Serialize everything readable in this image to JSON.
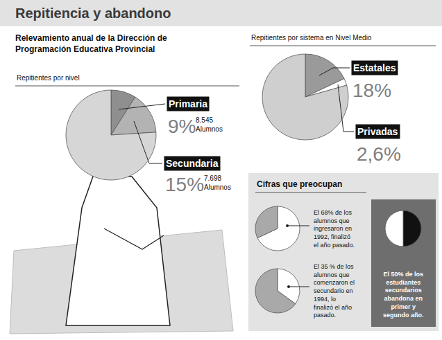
{
  "header": {
    "title": "Repitiencia y abandono",
    "subtitle": "Relevamiento anual de la Dirección de Programación Educativa Provincial"
  },
  "panel": {
    "title": "Cifras que preocupan"
  },
  "chart_data": [
    {
      "type": "pie",
      "title": "Repitientes por nivel",
      "categories": [
        "Primaria",
        "Secundaria",
        null
      ],
      "values": [
        9,
        15,
        76
      ],
      "value_labels": [
        "9%",
        "15%",
        null
      ],
      "students": [
        {
          "value": 8545,
          "label": "8.545"
        },
        {
          "value": 7698,
          "label": "7.698"
        },
        null
      ],
      "students_unit": "Alumnos",
      "colors": [
        "#8f8f8f",
        "#b3b3b3",
        "#d6d6d6"
      ]
    },
    {
      "type": "pie",
      "title": "Repitientes por sistema en Nivel Medio",
      "categories": [
        "Estatales",
        "Privadas",
        null
      ],
      "values": [
        18,
        2.6,
        79.4
      ],
      "value_labels": [
        "18%",
        "2,6%",
        null
      ],
      "colors": [
        "#9a9a9a",
        "#ffffff",
        "#cfcfcf"
      ]
    },
    {
      "type": "pie",
      "annotation": "El 68% de los alumnos que ingresaron en 1992, finalizó el año pasado.",
      "values": [
        68,
        32
      ],
      "colors": [
        "#ffffff",
        "#a9a9a9"
      ]
    },
    {
      "type": "pie",
      "annotation": "El 35 % de los alumnos que comenzaron el secundario en 1994, lo finalizó el año pasado.",
      "values": [
        35,
        65
      ],
      "colors": [
        "#ffffff",
        "#a9a9a9"
      ]
    },
    {
      "type": "pie",
      "annotation": "El 50% de los estudiantes secundarios abandona en primer y segundo año.",
      "values": [
        50,
        50
      ],
      "colors": [
        "#111111",
        "#ffffff"
      ]
    }
  ]
}
